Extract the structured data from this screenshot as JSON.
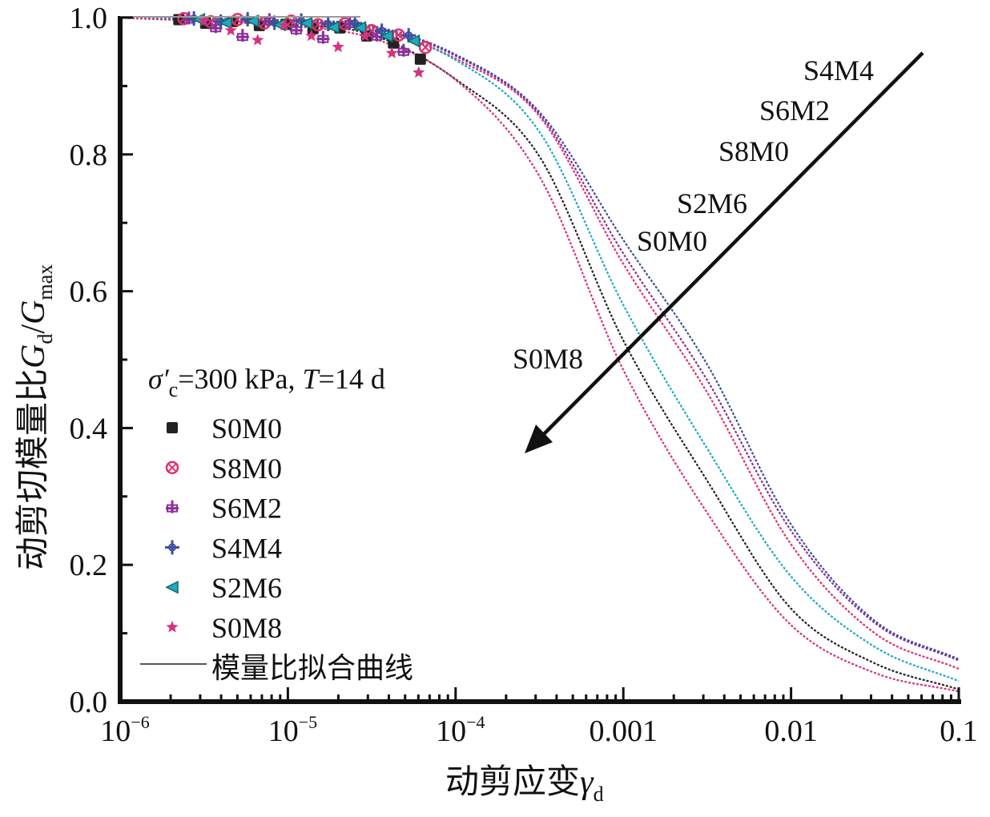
{
  "chart_data": {
    "type": "line",
    "title": "",
    "xlabel": "动剪应变γd",
    "xlabel_main": "动剪应变",
    "xlabel_symbol": "γ",
    "xlabel_sub": "d",
    "ylabel": "动剪切模量比Gd/Gmax",
    "ylabel_main": "动剪切模量比",
    "ylabel_sym1": "G",
    "ylabel_sub1": "d",
    "ylabel_slash": "/",
    "ylabel_sym2": "G",
    "ylabel_sub2": "max",
    "xscale": "log",
    "xlim": [
      1e-06,
      0.1
    ],
    "ylim": [
      0.0,
      1.0
    ],
    "grid": false,
    "x_ticks": [
      {
        "value": 1e-06,
        "base": "10",
        "exp": "−6",
        "label": ""
      },
      {
        "value": 1e-05,
        "base": "10",
        "exp": "−5",
        "label": ""
      },
      {
        "value": 0.0001,
        "base": "10",
        "exp": "−4",
        "label": ""
      },
      {
        "value": 0.001,
        "base": "",
        "exp": "",
        "label": "0.001"
      },
      {
        "value": 0.01,
        "base": "",
        "exp": "",
        "label": "0.01"
      },
      {
        "value": 0.1,
        "base": "",
        "exp": "",
        "label": "0.1"
      }
    ],
    "y_ticks": [
      {
        "value": 0.0,
        "label": "0.0"
      },
      {
        "value": 0.2,
        "label": "0.2"
      },
      {
        "value": 0.4,
        "label": "0.4"
      },
      {
        "value": 0.6,
        "label": "0.6"
      },
      {
        "value": 0.8,
        "label": "0.8"
      },
      {
        "value": 1.0,
        "label": "1.0"
      }
    ],
    "legend": {
      "placement": "left-middle",
      "title_sigma": "σ′",
      "title_sub": "c",
      "title_rest1": "=300 kPa, ",
      "title_T": "T",
      "title_rest2": "=14 d",
      "fit_line_label": "模量比拟合曲线",
      "fit_line_color": "#555555"
    },
    "x_log_points": [
      -6,
      -5,
      -4.5,
      -4,
      -3.5,
      -3,
      -2.5,
      -2,
      -1.5,
      -1
    ],
    "series": [
      {
        "name": "S0M0",
        "marker": "square",
        "color": "#222222",
        "values": [
          1.0,
          0.99,
          0.975,
          0.91,
          0.797,
          0.528,
          0.323,
          0.136,
          0.056,
          0.018
        ]
      },
      {
        "name": "S8M0",
        "marker": "circle-x",
        "color": "#e0306e",
        "values": [
          1.0,
          0.995,
          0.985,
          0.94,
          0.856,
          0.64,
          0.452,
          0.23,
          0.1,
          0.048
        ]
      },
      {
        "name": "S6M2",
        "marker": "cross-plus",
        "color": "#8a2f9a",
        "values": [
          1.0,
          0.995,
          0.987,
          0.944,
          0.859,
          0.655,
          0.47,
          0.25,
          0.115,
          0.06
        ]
      },
      {
        "name": "S4M4",
        "marker": "plus-arrows",
        "color": "#3c4fa0",
        "values": [
          1.0,
          0.996,
          0.988,
          0.946,
          0.862,
          0.675,
          0.493,
          0.259,
          0.118,
          0.062
        ]
      },
      {
        "name": "S2M6",
        "marker": "triangle-left",
        "color": "#1fa8c8",
        "values": [
          1.0,
          0.993,
          0.982,
          0.938,
          0.833,
          0.58,
          0.37,
          0.183,
          0.08,
          0.03
        ]
      },
      {
        "name": "S0M8",
        "marker": "star",
        "color": "#d4337f",
        "values": [
          1.0,
          0.988,
          0.97,
          0.909,
          0.768,
          0.485,
          0.276,
          0.112,
          0.042,
          0.015
        ]
      }
    ],
    "measured_range": [
      1e-06,
      7e-05
    ],
    "annotations": {
      "arrow_direction": "from upper-right to lower-left (decreasing curves)",
      "labels": [
        "S4M4",
        "S6M2",
        "S8M0",
        "S2M6",
        "S0M0",
        "S0M8"
      ]
    }
  }
}
